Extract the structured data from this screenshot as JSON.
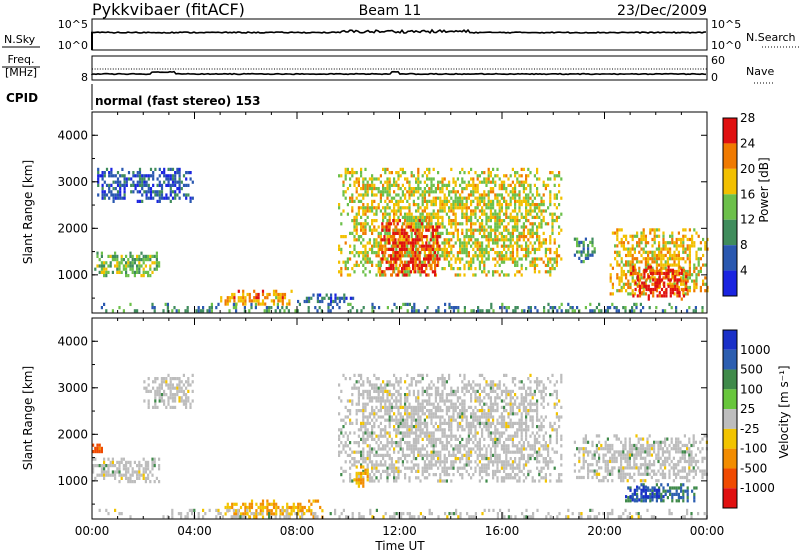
{
  "header": {
    "station": "Pykkvibaer (fitACF)",
    "beam": "Beam 11",
    "date": "23/Dec/2009"
  },
  "top_panels": {
    "nsky_label": "N.Sky",
    "nsky_ticks": [
      "10^5",
      "10^0"
    ],
    "nsearch_label": "N.Search",
    "freq_label_1": "Freq.",
    "freq_label_2": "[MHz]",
    "freq_ticks": [
      "8"
    ],
    "nave_ticks": [
      "60",
      "0"
    ],
    "nave_label": "Nave",
    "cpid_label": "CPID",
    "cpid_text": "normal (fast stereo) 153"
  },
  "colors": {
    "power_scale": [
      "#1a24e0",
      "#2a58b0",
      "#3f8c5c",
      "#6cc04a",
      "#f2c000",
      "#f07a00",
      "#e01010"
    ],
    "velocity_scale": [
      "#1a30c8",
      "#2c5eb0",
      "#3f8a4a",
      "#68c63c",
      "#bdbdbd",
      "#f2c400",
      "#f28c00",
      "#f04a00",
      "#e01010"
    ],
    "ground_scatter": "#bdbdbd"
  },
  "chart_data": [
    {
      "type": "heatmap",
      "title": "",
      "xlabel": "Time UT",
      "ylabel": "Slant Range [km]",
      "x_ticks": [
        "00:00",
        "04:00",
        "08:00",
        "12:00",
        "16:00",
        "20:00",
        "00:00"
      ],
      "y_ticks": [
        "1000",
        "2000",
        "3000",
        "4000"
      ],
      "xlim_hours": [
        0,
        24
      ],
      "ylim_km": [
        180,
        4500
      ],
      "colorbar": {
        "label": "Power [dB]",
        "ticks": [
          "4",
          "8",
          "12",
          "16",
          "20",
          "24",
          "28"
        ],
        "range": [
          0,
          30
        ]
      },
      "echo_regions": [
        {
          "t_start": 0.0,
          "t_end": 2.6,
          "r_min": 1000,
          "r_max": 1500,
          "value_db": 14
        },
        {
          "t_start": 0.2,
          "t_end": 3.9,
          "r_min": 2600,
          "r_max": 3300,
          "value_db": 6
        },
        {
          "t_start": 5.0,
          "t_end": 7.8,
          "r_min": 380,
          "r_max": 680,
          "value_db": 22
        },
        {
          "t_start": 8.0,
          "t_end": 10.2,
          "r_min": 400,
          "r_max": 600,
          "value_db": 6
        },
        {
          "t_start": 9.6,
          "t_end": 18.3,
          "r_min": 1000,
          "r_max": 3300,
          "value_db": 18
        },
        {
          "t_start": 11.2,
          "t_end": 13.6,
          "r_min": 1000,
          "r_max": 2200,
          "value_db": 27
        },
        {
          "t_start": 18.8,
          "t_end": 19.6,
          "r_min": 1300,
          "r_max": 1800,
          "value_db": 10
        },
        {
          "t_start": 20.2,
          "t_end": 24.0,
          "r_min": 600,
          "r_max": 2000,
          "value_db": 20
        },
        {
          "t_start": 21.0,
          "t_end": 23.2,
          "r_min": 500,
          "r_max": 1200,
          "value_db": 28
        },
        {
          "t_start": 0.0,
          "t_end": 24.0,
          "r_min": 200,
          "r_max": 400,
          "value_db": 10
        }
      ]
    },
    {
      "type": "heatmap",
      "title": "",
      "xlabel": "Time UT",
      "ylabel": "Slant Range [km]",
      "x_ticks": [
        "00:00",
        "04:00",
        "08:00",
        "12:00",
        "16:00",
        "20:00",
        "00:00"
      ],
      "y_ticks": [
        "1000",
        "2000",
        "3000",
        "4000"
      ],
      "xlim_hours": [
        0,
        24
      ],
      "ylim_km": [
        180,
        4500
      ],
      "colorbar": {
        "label": "Velocity [m s⁻¹]",
        "ticks": [
          "1000",
          "500",
          "100",
          "25",
          "-25",
          "-100",
          "-500",
          "-1000"
        ]
      },
      "echo_regions": [
        {
          "t_start": 0.0,
          "t_end": 2.6,
          "r_min": 1000,
          "r_max": 1500,
          "value_ms": 0
        },
        {
          "t_start": 0.0,
          "t_end": 0.4,
          "r_min": 1600,
          "r_max": 1800,
          "value_ms": -400
        },
        {
          "t_start": 2.0,
          "t_end": 3.9,
          "r_min": 2600,
          "r_max": 3300,
          "value_ms": 0
        },
        {
          "t_start": 5.0,
          "t_end": 9.0,
          "r_min": 250,
          "r_max": 600,
          "value_ms": -60
        },
        {
          "t_start": 9.6,
          "t_end": 18.3,
          "r_min": 1000,
          "r_max": 3300,
          "value_ms": 0
        },
        {
          "t_start": 10.2,
          "t_end": 10.8,
          "r_min": 900,
          "r_max": 1400,
          "value_ms": -60
        },
        {
          "t_start": 18.8,
          "t_end": 24.0,
          "r_min": 1000,
          "r_max": 2000,
          "value_ms": 0
        },
        {
          "t_start": 20.8,
          "t_end": 23.6,
          "r_min": 550,
          "r_max": 950,
          "value_ms": 300
        },
        {
          "t_start": 20.8,
          "t_end": 22.3,
          "r_min": 600,
          "r_max": 900,
          "value_ms": 800
        },
        {
          "t_start": 0.0,
          "t_end": 24.0,
          "r_min": 200,
          "r_max": 400,
          "value_ms": 0
        }
      ]
    }
  ]
}
